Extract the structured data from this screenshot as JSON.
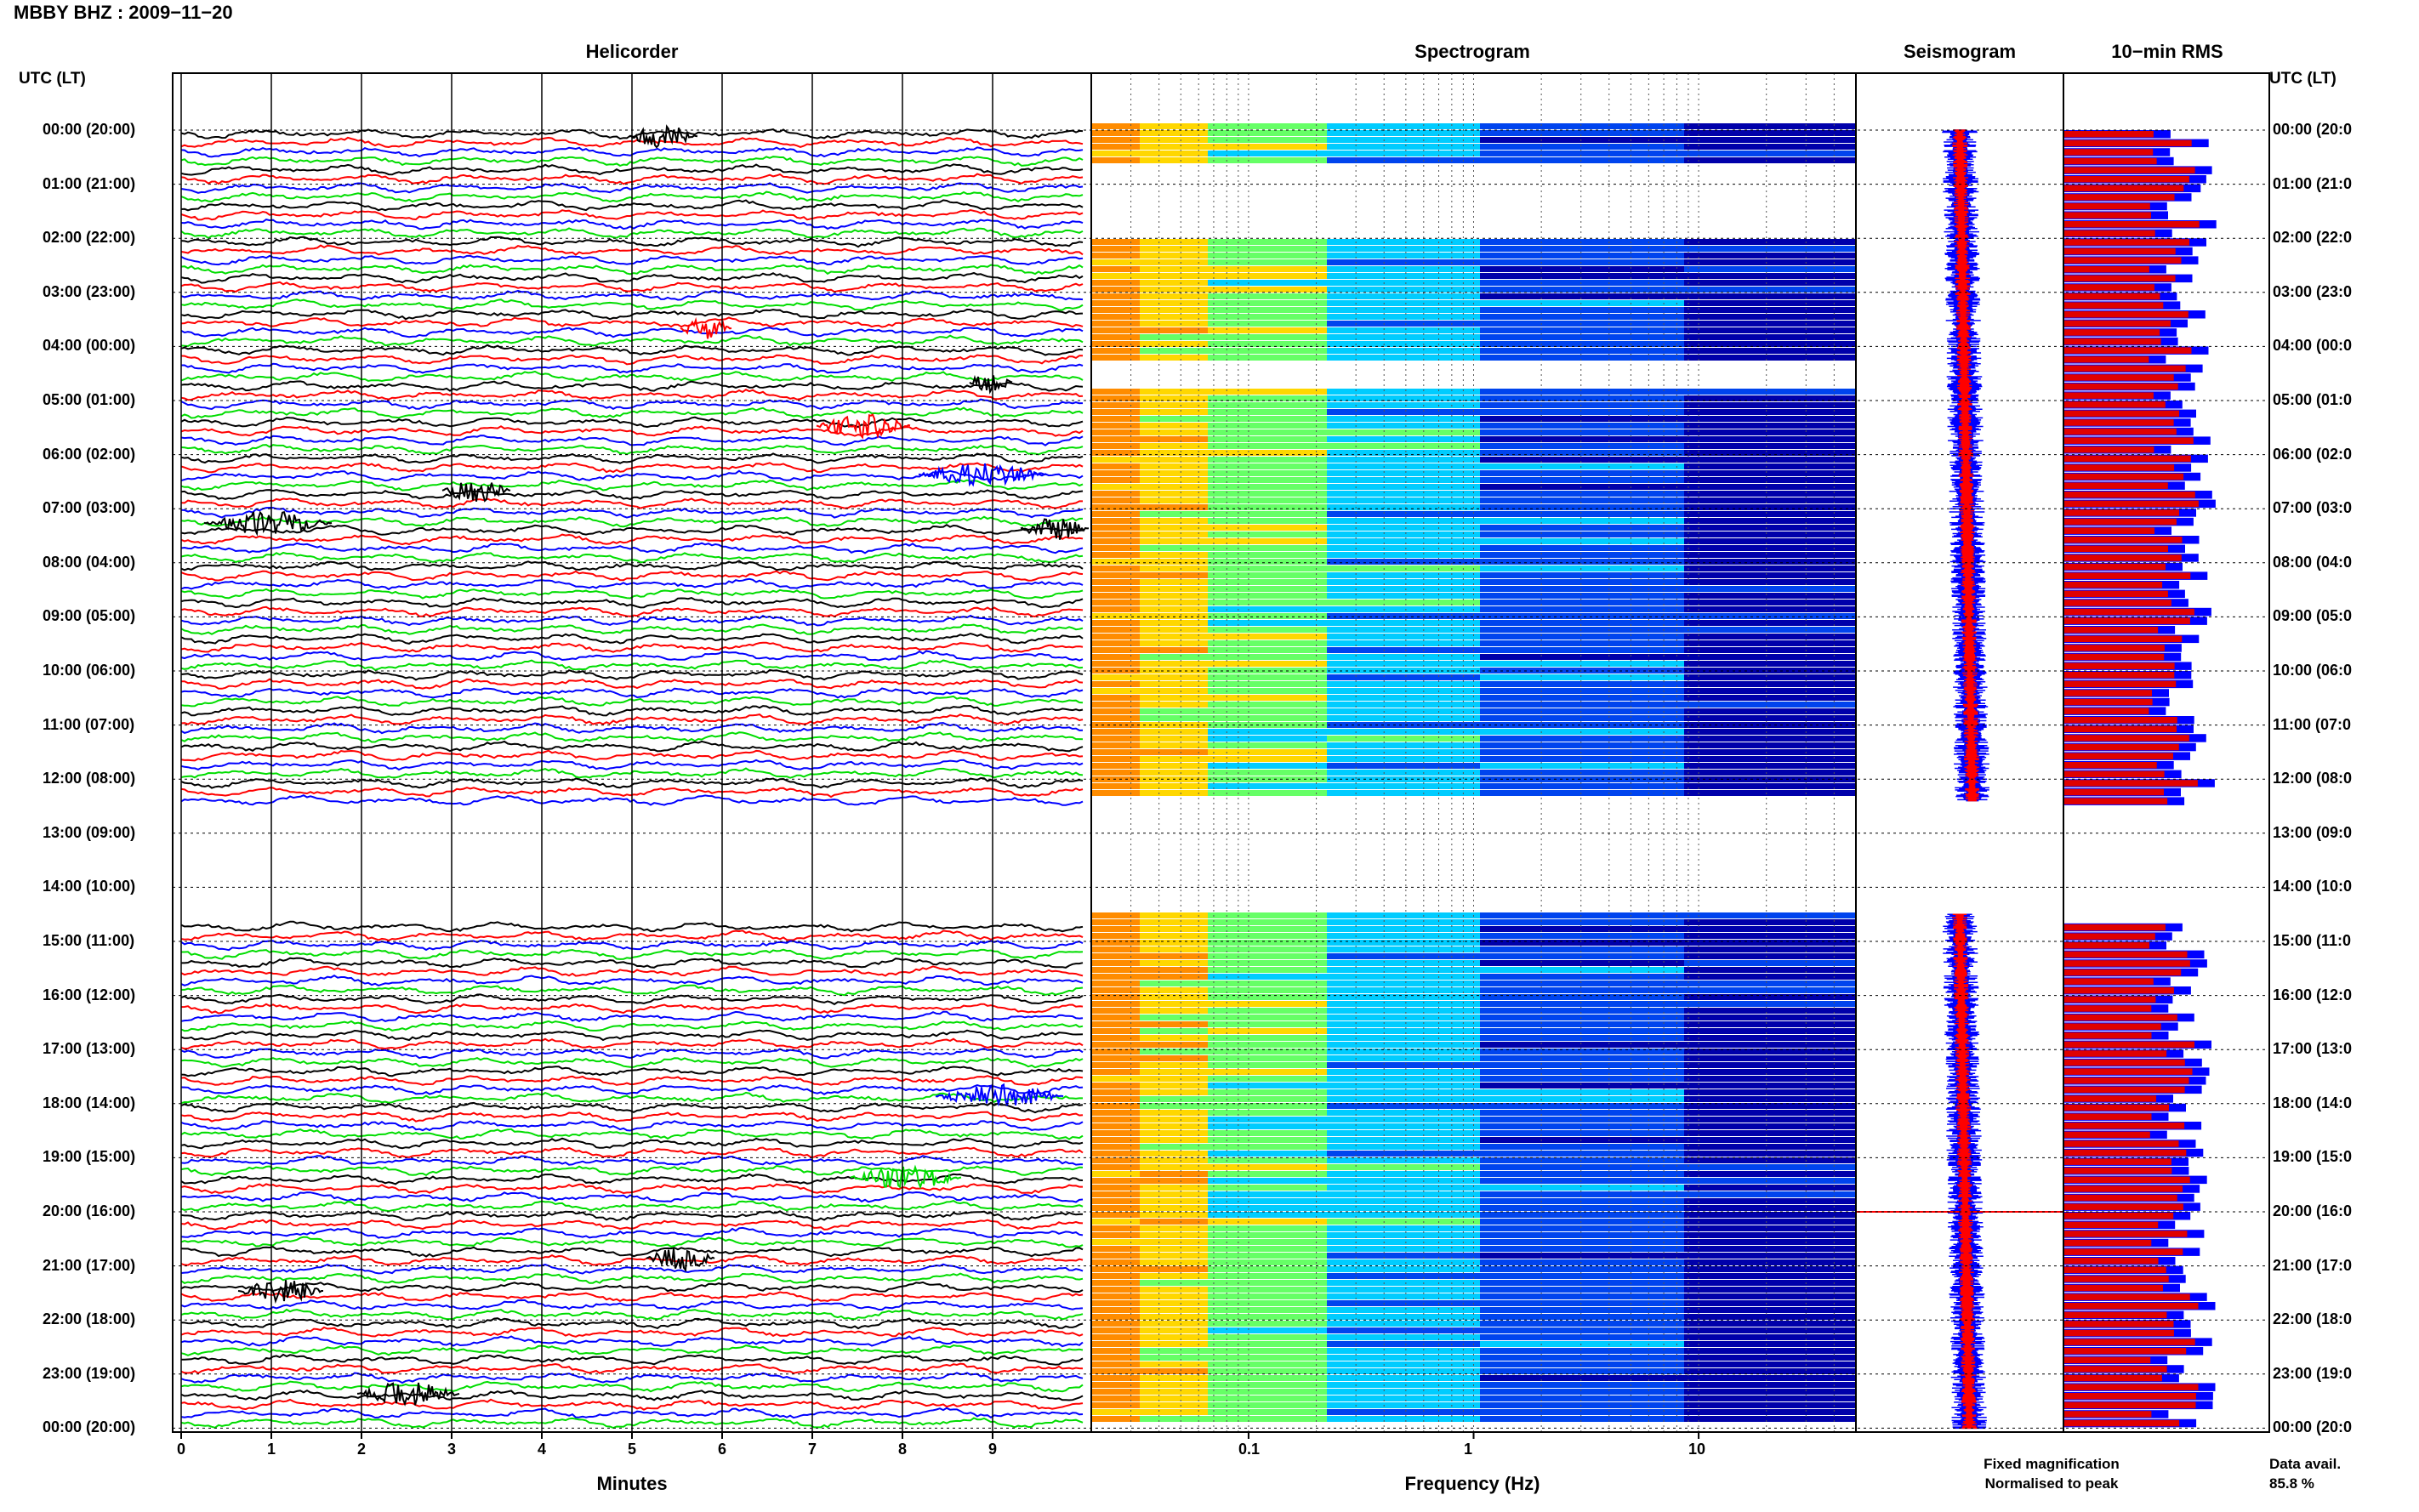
{
  "header": {
    "title": "MBBY BHZ : 2009−11−20",
    "utc_label_left": "UTC (LT)",
    "utc_label_right": "UTC (LT)"
  },
  "panels": {
    "helicorder": "Helicorder",
    "spectrogram": "Spectrogram",
    "seismogram": "Seismogram",
    "rms": "10−min RMS"
  },
  "hour_labels": [
    "00:00 (20:00)",
    "01:00 (21:00)",
    "02:00 (22:00)",
    "03:00 (23:00)",
    "04:00 (00:00)",
    "05:00 (01:00)",
    "06:00 (02:00)",
    "07:00 (03:00)",
    "08:00 (04:00)",
    "09:00 (05:00)",
    "10:00 (06:00)",
    "11:00 (07:00)",
    "12:00 (08:00)",
    "13:00 (09:00)",
    "14:00 (10:00)",
    "15:00 (11:00)",
    "16:00 (12:00)",
    "17:00 (13:00)",
    "18:00 (14:00)",
    "19:00 (15:00)",
    "20:00 (16:00)",
    "21:00 (17:00)",
    "22:00 (18:00)",
    "23:00 (19:00)",
    "00:00 (20:00)"
  ],
  "hour_labels_right": [
    "00:00 (20:0",
    "01:00 (21:0",
    "02:00 (22:0",
    "03:00 (23:0",
    "04:00 (00:0",
    "05:00 (01:0",
    "06:00 (02:0",
    "07:00 (03:0",
    "08:00 (04:0",
    "09:00 (05:0",
    "10:00 (06:0",
    "11:00 (07:0",
    "12:00 (08:0",
    "13:00 (09:0",
    "14:00 (10:0",
    "15:00 (11:0",
    "16:00 (12:0",
    "17:00 (13:0",
    "18:00 (14:0",
    "19:00 (15:0",
    "20:00 (16:0",
    "21:00 (17:0",
    "22:00 (18:0",
    "23:00 (19:0",
    "00:00 (20:0"
  ],
  "legend": {
    "fixed": "Fixed magnification",
    "normalised": "Normalised to peak",
    "fixed_color": "#0000ff",
    "normalised_color": "#ff0000"
  },
  "data_avail": {
    "label": "Data avail.",
    "value": "85.8 %"
  },
  "chart_data": {
    "type": "heatmap",
    "title": "MBBY BHZ : 2009−11−20",
    "helicorder": {
      "xlabel": "Minutes",
      "x_ticks": [
        "0",
        "1",
        "2",
        "3",
        "4",
        "5",
        "6",
        "7",
        "8",
        "9"
      ],
      "xlim": [
        0,
        10
      ],
      "trace_colors": [
        "#000000",
        "#ff0000",
        "#0000ff",
        "#00dd00"
      ],
      "lines_per_hour": 6,
      "missing_hours": [
        "13:00",
        "14:00"
      ]
    },
    "spectrogram": {
      "xlabel": "Frequency (Hz)",
      "x_ticks": [
        "0.1",
        "1",
        "10"
      ],
      "xscale": "log",
      "xlim": [
        0.02,
        50
      ],
      "colormap": [
        "#ff8c00",
        "#ffd700",
        "#66ff66",
        "#00ccff",
        "#0044ee",
        "#0000aa"
      ]
    },
    "seismogram": {
      "series": [
        {
          "name": "Fixed magnification",
          "color": "#0000ff"
        },
        {
          "name": "Normalised to peak",
          "color": "#ff0000"
        }
      ]
    },
    "rms_10min": {
      "series": [
        {
          "name": "Fixed magnification",
          "color": "#0000ff"
        },
        {
          "name": "Normalised to peak",
          "color": "#ff0000"
        }
      ],
      "data_available_percent": 85.8
    }
  }
}
